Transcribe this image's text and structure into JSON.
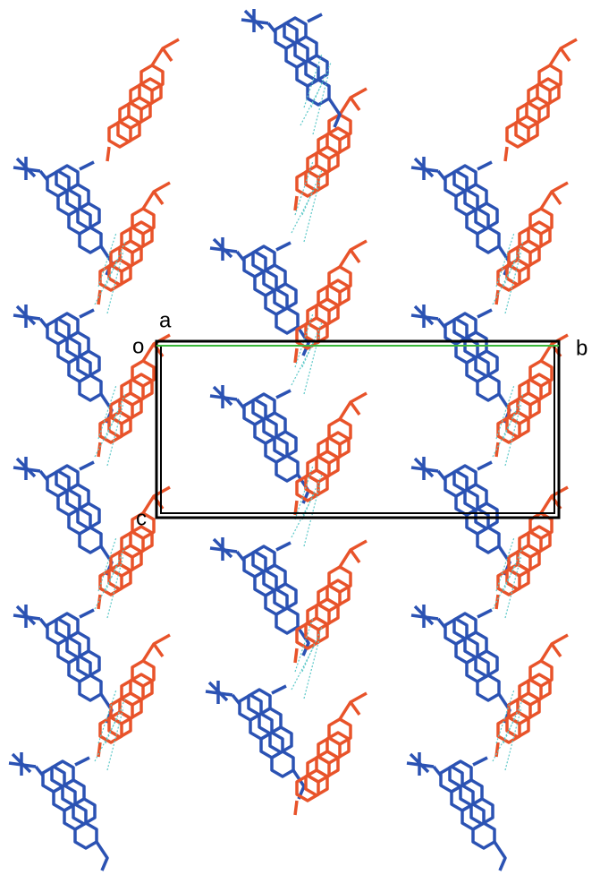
{
  "unit_cell": {
    "origin": "o",
    "a": "a",
    "b": "b",
    "c": "c"
  }
}
